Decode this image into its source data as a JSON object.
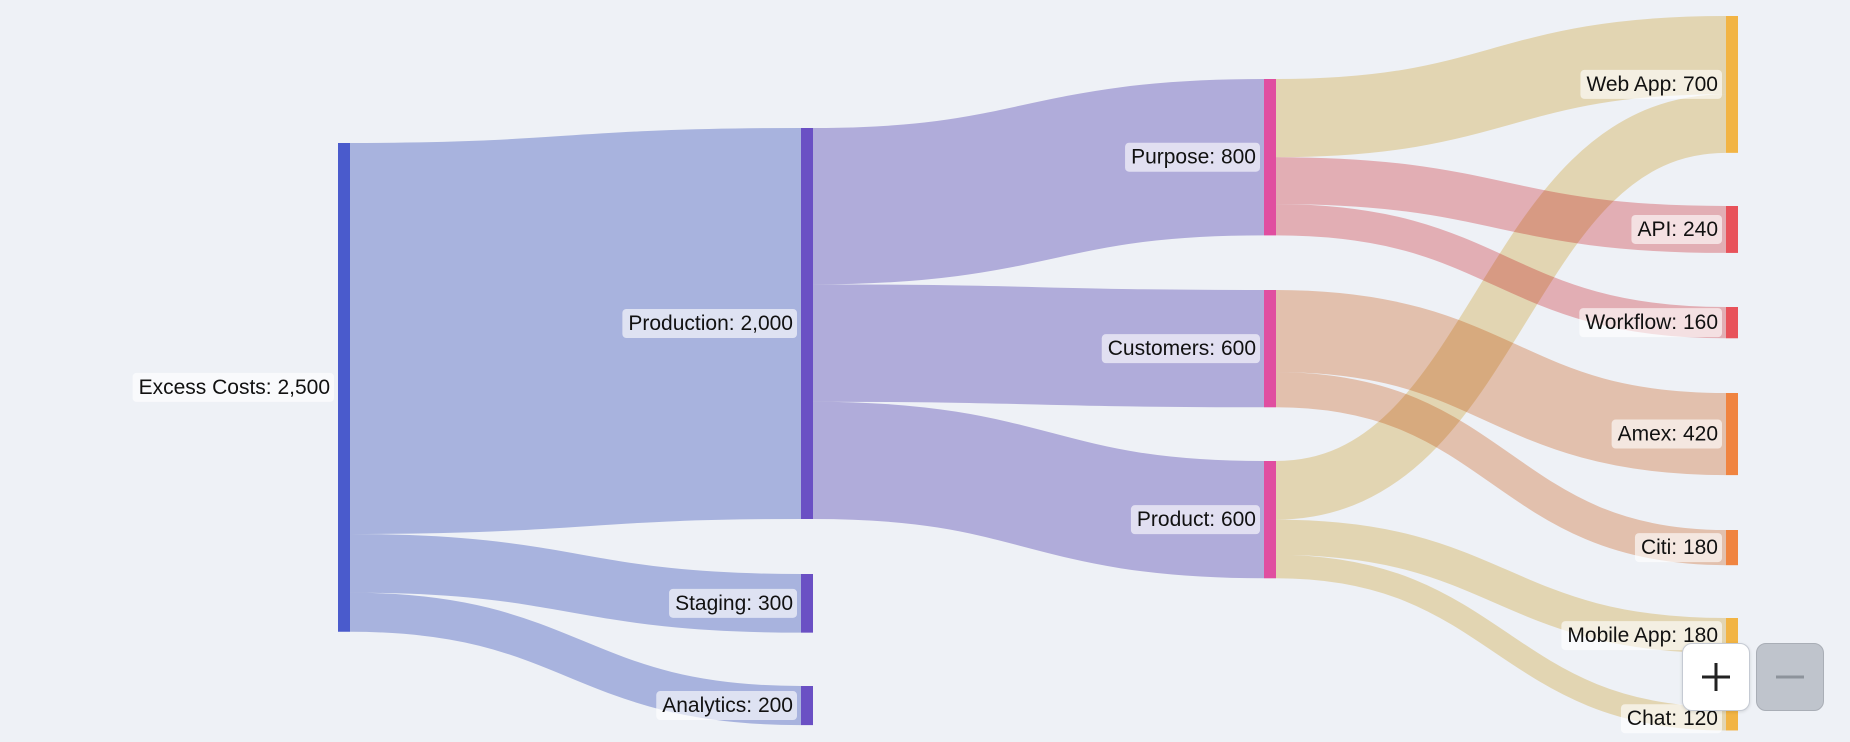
{
  "nodes": [
    {
      "id": "excess",
      "label": "Excess Costs: 2,500",
      "color": "#4a5bcc"
    },
    {
      "id": "production",
      "label": "Production: 2,000",
      "color": "#6a50c4"
    },
    {
      "id": "staging",
      "label": "Staging: 300",
      "color": "#6a50c4"
    },
    {
      "id": "analytics",
      "label": "Analytics: 200",
      "color": "#6a50c4"
    },
    {
      "id": "purpose",
      "label": "Purpose: 800",
      "color": "#e04ea0"
    },
    {
      "id": "customers",
      "label": "Customers: 600",
      "color": "#e04ea0"
    },
    {
      "id": "product",
      "label": "Product: 600",
      "color": "#e04ea0"
    },
    {
      "id": "webapp",
      "label": "Web App: 700",
      "color": "#f2b444"
    },
    {
      "id": "api",
      "label": "API: 240",
      "color": "#e8525a"
    },
    {
      "id": "workflow",
      "label": "Workflow: 160",
      "color": "#e8525a"
    },
    {
      "id": "amex",
      "label": "Amex: 420",
      "color": "#f08440"
    },
    {
      "id": "citi",
      "label": "Citi: 180",
      "color": "#f08440"
    },
    {
      "id": "mobileapp",
      "label": "Mobile App: 180",
      "color": "#f2b444"
    },
    {
      "id": "chat",
      "label": "Chat: 120",
      "color": "#f2b444"
    }
  ],
  "links": [
    {
      "source": "excess",
      "target": "production",
      "value": 2000,
      "color": "#a3b0e0"
    },
    {
      "source": "excess",
      "target": "staging",
      "value": 300,
      "color": "#a3b0e0"
    },
    {
      "source": "excess",
      "target": "analytics",
      "value": 200,
      "color": "#a3b0e0"
    },
    {
      "source": "production",
      "target": "purpose",
      "value": 800,
      "color": "#afa6dc"
    },
    {
      "source": "production",
      "target": "customers",
      "value": 600,
      "color": "#afa6dc"
    },
    {
      "source": "production",
      "target": "product",
      "value": 600,
      "color": "#afa6dc"
    },
    {
      "source": "purpose",
      "target": "webapp",
      "value": 400,
      "color": "#f0dcaa"
    },
    {
      "source": "purpose",
      "target": "api",
      "value": 240,
      "color": "#f0a8ac"
    },
    {
      "source": "purpose",
      "target": "workflow",
      "value": 160,
      "color": "#f0a8ac"
    },
    {
      "source": "customers",
      "target": "amex",
      "value": 420,
      "color": "#f0c0a2"
    },
    {
      "source": "customers",
      "target": "citi",
      "value": 180,
      "color": "#f0c0a2"
    },
    {
      "source": "product",
      "target": "webapp",
      "value": 300,
      "color": "#f0dcaa"
    },
    {
      "source": "product",
      "target": "mobileapp",
      "value": 180,
      "color": "#f0dcaa"
    },
    {
      "source": "product",
      "target": "chat",
      "value": 120,
      "color": "#f0dcaa"
    }
  ],
  "controls": {
    "zoom_in_icon": "plus-icon",
    "zoom_out_icon": "minus-icon"
  }
}
